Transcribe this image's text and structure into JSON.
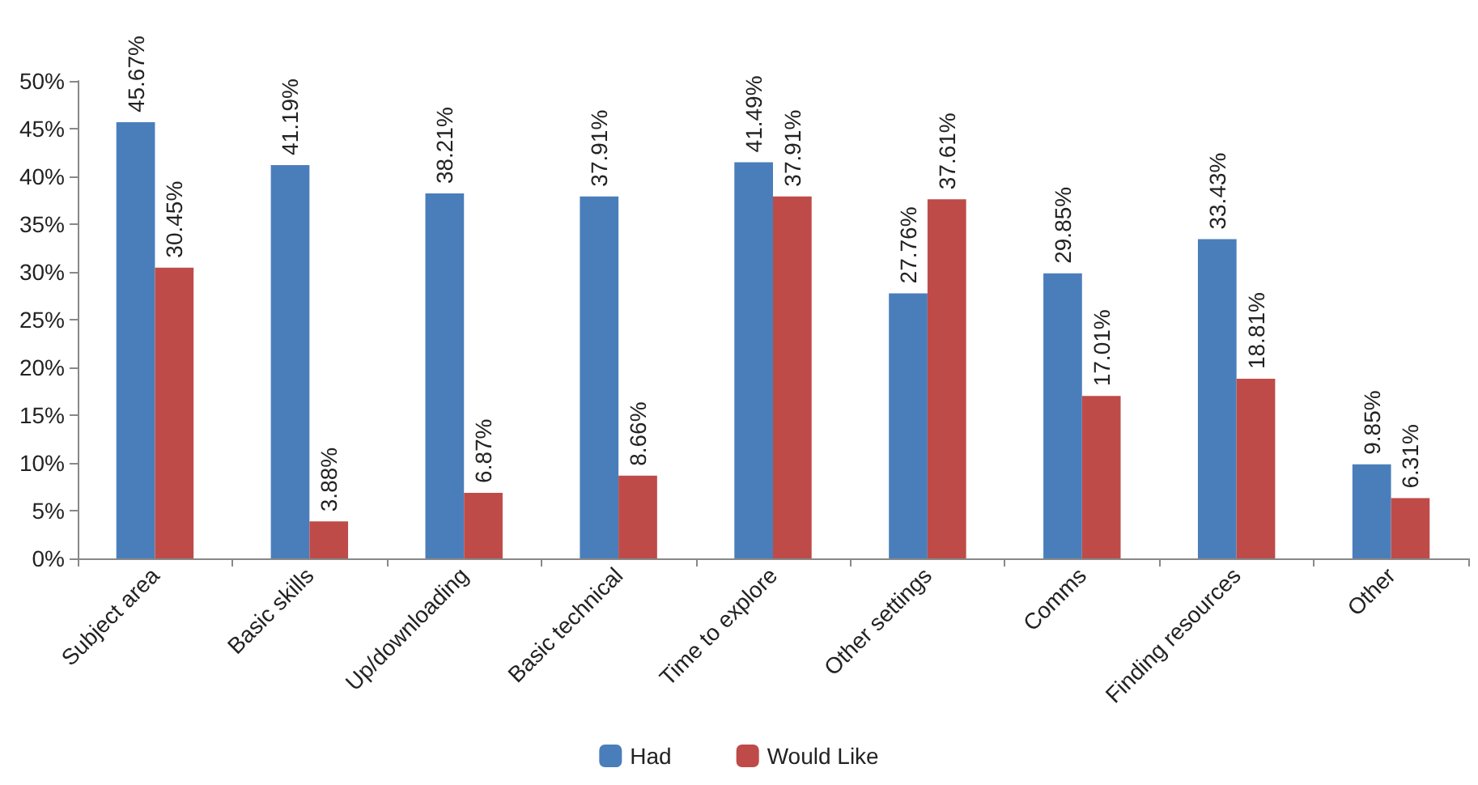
{
  "chart_data": {
    "type": "bar",
    "categories": [
      "Subject area",
      "Basic skills",
      "Up/downloading",
      "Basic technical",
      "Time to explore",
      "Other settings",
      "Comms",
      "Finding resources",
      "Other"
    ],
    "series": [
      {
        "name": "Had",
        "color": "#4a7ebb",
        "values": [
          45.67,
          41.19,
          38.21,
          37.91,
          41.49,
          27.76,
          29.85,
          33.43,
          9.85
        ],
        "value_labels": [
          "45.67%",
          "41.19%",
          "38.21%",
          "37.91%",
          "41.49%",
          "27.76%",
          "29.85%",
          "33.43%",
          "9.85%"
        ]
      },
      {
        "name": "Would Like",
        "color": "#be4b48",
        "values": [
          30.45,
          3.88,
          6.87,
          8.66,
          37.91,
          37.61,
          17.01,
          18.81,
          6.31
        ],
        "value_labels": [
          "30.45%",
          "3.88%",
          "6.87%",
          "8.66%",
          "37.91%",
          "37.61%",
          "17.01%",
          "18.81%",
          "6.31%"
        ]
      }
    ],
    "ylim": [
      0,
      50
    ],
    "yticks": [
      {
        "value": 0,
        "label": "0%"
      },
      {
        "value": 5,
        "label": "5%"
      },
      {
        "value": 10,
        "label": "10%"
      },
      {
        "value": 15,
        "label": "15%"
      },
      {
        "value": 20,
        "label": "20%"
      },
      {
        "value": 25,
        "label": "25%"
      },
      {
        "value": 30,
        "label": "30%"
      },
      {
        "value": 35,
        "label": "35%"
      },
      {
        "value": 40,
        "label": "40%"
      },
      {
        "value": 45,
        "label": "45%"
      },
      {
        "value": 50,
        "label": "50%"
      }
    ],
    "grid": false,
    "legend": "bottom"
  }
}
